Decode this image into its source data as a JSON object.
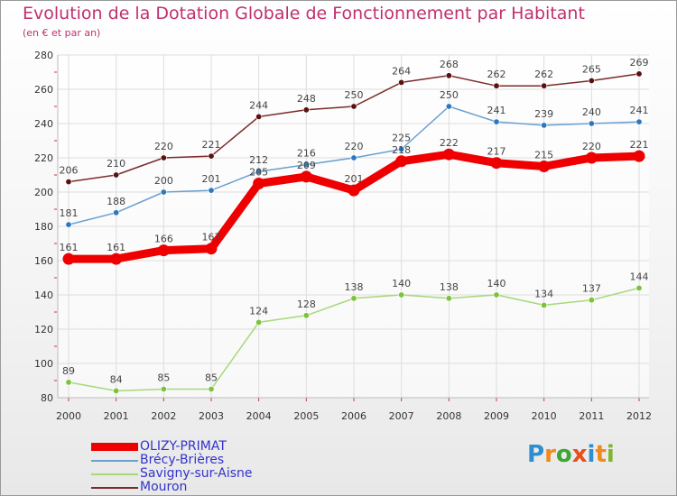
{
  "header": {
    "title": "Evolution de la Dotation Globale de Fonctionnement par Habitant",
    "subtitle": "(en € et par an)"
  },
  "brand": {
    "logo_text": "Proxiti"
  },
  "colors": {
    "title": "#c0306e",
    "legend_text": "#3333cc",
    "axis_text": "#333333",
    "grid": "#dddddd"
  },
  "chart_data": {
    "type": "line",
    "title": "Evolution de la Dotation Globale de Fonctionnement par Habitant",
    "subtitle": "(en € et par an)",
    "xlabel": "",
    "ylabel": "",
    "x": [
      "2000",
      "2001",
      "2002",
      "2003",
      "2004",
      "2005",
      "2006",
      "2007",
      "2008",
      "2009",
      "2010",
      "2011",
      "2012"
    ],
    "ylim": [
      80,
      280
    ],
    "yticks": [
      "80",
      "100",
      "120",
      "140",
      "160",
      "180",
      "200",
      "220",
      "240",
      "260",
      "280"
    ],
    "grid": true,
    "legend_position": "bottom-left",
    "series": [
      {
        "name": "Mouron",
        "color": "#7b2a2a",
        "marker": "#5a1010",
        "values": [
          206,
          210,
          220,
          221,
          244,
          248,
          250,
          264,
          268,
          262,
          262,
          265,
          269
        ]
      },
      {
        "name": "Brécy-Brières",
        "color": "#6aa0d0",
        "marker": "#2c78c0",
        "values": [
          181,
          188,
          200,
          201,
          212,
          216,
          220,
          225,
          250,
          241,
          239,
          240,
          241
        ]
      },
      {
        "name": "Savigny-sur-Aisne",
        "color": "#a6d87a",
        "marker": "#7cc23a",
        "values": [
          89,
          84,
          85,
          85,
          124,
          128,
          138,
          140,
          138,
          140,
          134,
          137,
          144
        ]
      },
      {
        "name": "OLIZY-PRIMAT",
        "color": "#ee0000",
        "marker": "#ee0000",
        "values": [
          161,
          161,
          166,
          167,
          205,
          209,
          201,
          218,
          222,
          217,
          215,
          220,
          221
        ]
      }
    ],
    "legend": [
      "OLIZY-PRIMAT",
      "Brécy-Brières",
      "Savigny-sur-Aisne",
      "Mouron"
    ]
  }
}
